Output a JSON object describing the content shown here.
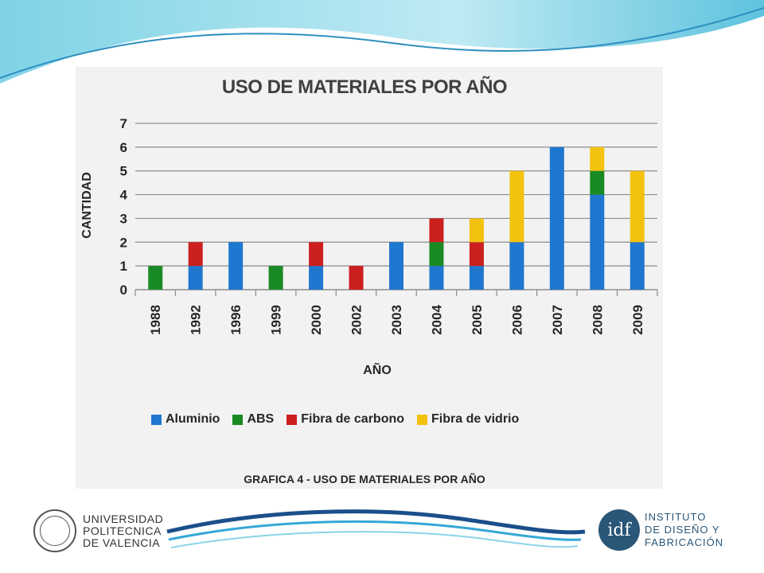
{
  "colors": {
    "aluminio": "#1f77cf",
    "abs": "#1a8a24",
    "carbono": "#cc1f1f",
    "vidrio": "#f2c20f",
    "grid": "#8c8c8c"
  },
  "chart_data": {
    "type": "bar",
    "stacked": true,
    "title": "USO DE MATERIALES POR AÑO",
    "xlabel": "AÑO",
    "ylabel": "CANTIDAD",
    "ylim": [
      0,
      7
    ],
    "yticks": [
      "0",
      "1",
      "2",
      "3",
      "4",
      "5",
      "6",
      "7"
    ],
    "grid": true,
    "legend_position": "bottom",
    "categories": [
      "1988",
      "1992",
      "1996",
      "1999",
      "2000",
      "2002",
      "2003",
      "2004",
      "2005",
      "2006",
      "2007",
      "2008",
      "2009"
    ],
    "series": [
      {
        "name": "Aluminio",
        "color_key": "aluminio",
        "values": [
          0,
          1,
          2,
          0,
          1,
          0,
          2,
          1,
          1,
          2,
          6,
          4,
          2
        ]
      },
      {
        "name": "ABS",
        "color_key": "abs",
        "values": [
          1,
          0,
          0,
          1,
          0,
          0,
          0,
          1,
          0,
          0,
          0,
          1,
          0
        ]
      },
      {
        "name": "Fibra de carbono",
        "color_key": "carbono",
        "values": [
          0,
          1,
          0,
          0,
          1,
          1,
          0,
          1,
          1,
          0,
          0,
          0,
          0
        ]
      },
      {
        "name": "Fibra de vidrio",
        "color_key": "vidrio",
        "values": [
          0,
          0,
          0,
          0,
          0,
          0,
          0,
          0,
          1,
          3,
          0,
          1,
          3
        ]
      }
    ]
  },
  "caption": "GRAFICA 4 - USO DE MATERIALES  POR AÑO",
  "logos": {
    "upv_lines": [
      "UNIVERSIDAD",
      "POLITECNICA",
      "DE VALENCIA"
    ],
    "idf_mark": "idf",
    "idf_lines": [
      "INSTITUTO",
      "DE DISEÑO Y",
      "FABRICACIÓN"
    ]
  }
}
